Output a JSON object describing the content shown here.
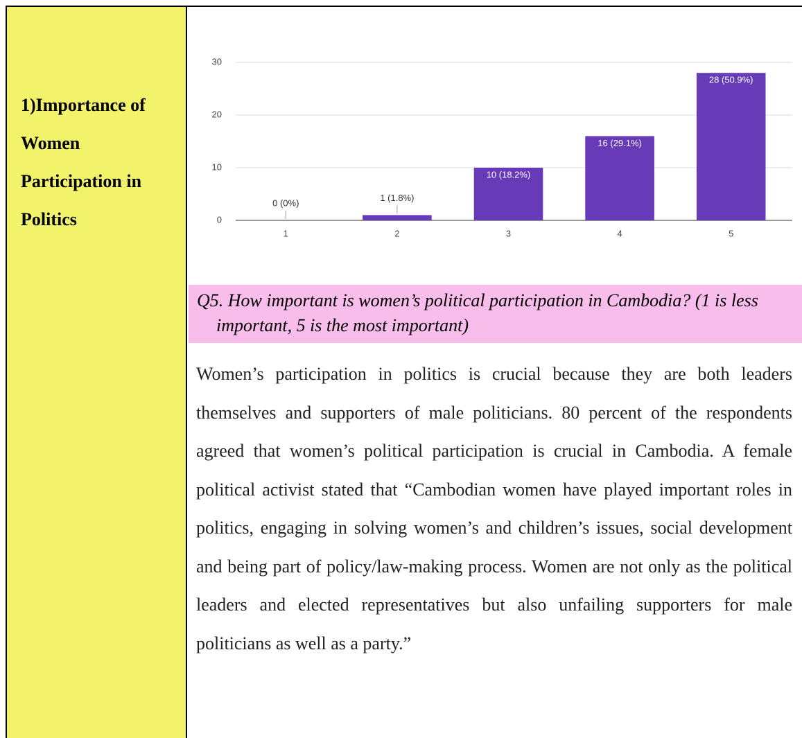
{
  "sidebar": {
    "heading": "1)Importance of Women Participation in Politics"
  },
  "chart_data": {
    "type": "bar",
    "categories": [
      "1",
      "2",
      "3",
      "4",
      "5"
    ],
    "values": [
      0,
      1,
      10,
      16,
      28
    ],
    "value_labels": [
      "0 (0%)",
      "1 (1.8%)",
      "10 (18.2%)",
      "16 (29.1%)",
      "28 (50.9%)"
    ],
    "color": "#673ab7",
    "ylim": [
      0,
      30
    ],
    "yticks": [
      0,
      10,
      20,
      30
    ],
    "grid": true
  },
  "caption": "Q5. How important is women’s political participation in Cambodia? (1 is less important, 5 is the most important)",
  "paragraph": "Women’s participation in politics is crucial because they are both leaders themselves and supporters of male politicians. 80 percent of the respondents agreed that women’s political participation is crucial in Cambodia. A female political activist stated that “Cambodian women have played important roles in politics, engaging in solving women’s and children’s issues, social development and being part of policy/law-making process. Women are not only as the political leaders and elected representatives but also unfailing supporters for male politicians as well as a party.”"
}
